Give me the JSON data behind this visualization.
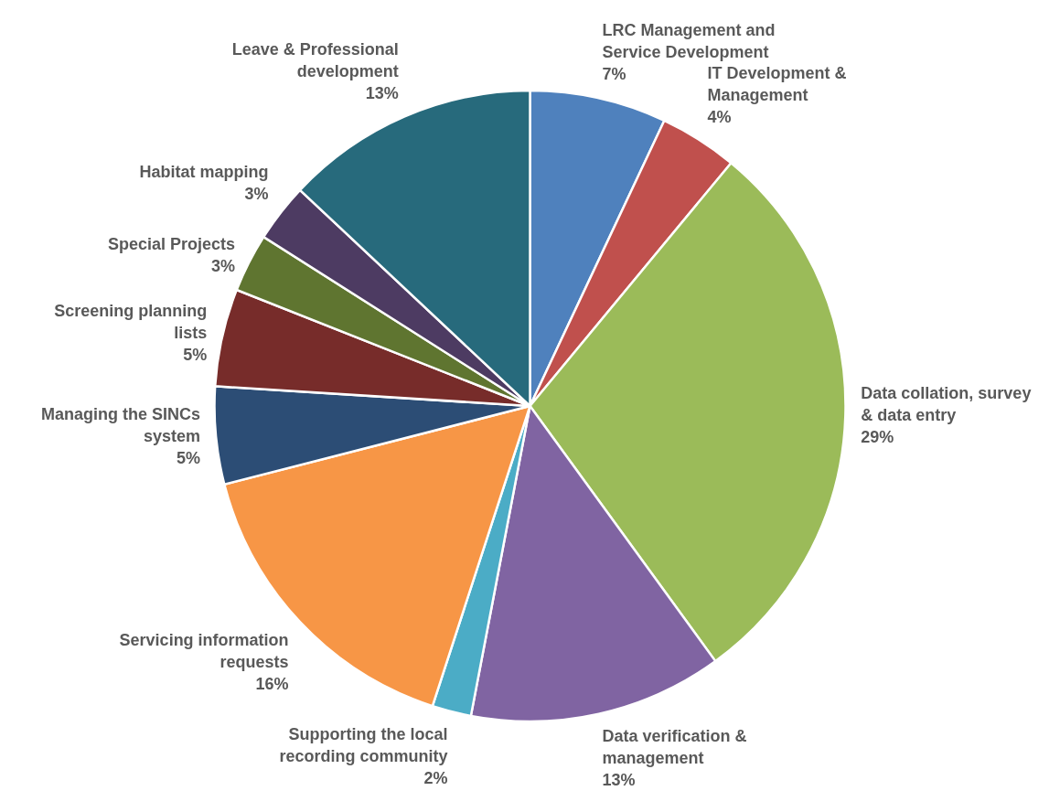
{
  "chart_data": {
    "type": "pie",
    "categories": [
      "LRC Management and Service Development",
      "IT Development & Management",
      "Data collation, survey & data entry",
      "Data verification & management",
      "Supporting the local recording community",
      "Servicing information requests",
      "Managing the SINCs system",
      "Screening planning lists",
      "Special Projects",
      "Habitat mapping",
      "Leave & Professional development"
    ],
    "values": [
      7,
      4,
      29,
      13,
      2,
      16,
      5,
      5,
      3,
      3,
      13
    ],
    "value_labels": [
      "7%",
      "4%",
      "29%",
      "13%",
      "2%",
      "16%",
      "5%",
      "5%",
      "3%",
      "3%",
      "13%"
    ],
    "colors": [
      "#4f81bd",
      "#c0504d",
      "#9bbb59",
      "#8064a2",
      "#4bacc6",
      "#f79646",
      "#2c4d75",
      "#772c2a",
      "#5f7530",
      "#4d3b62",
      "#276a7c"
    ]
  }
}
